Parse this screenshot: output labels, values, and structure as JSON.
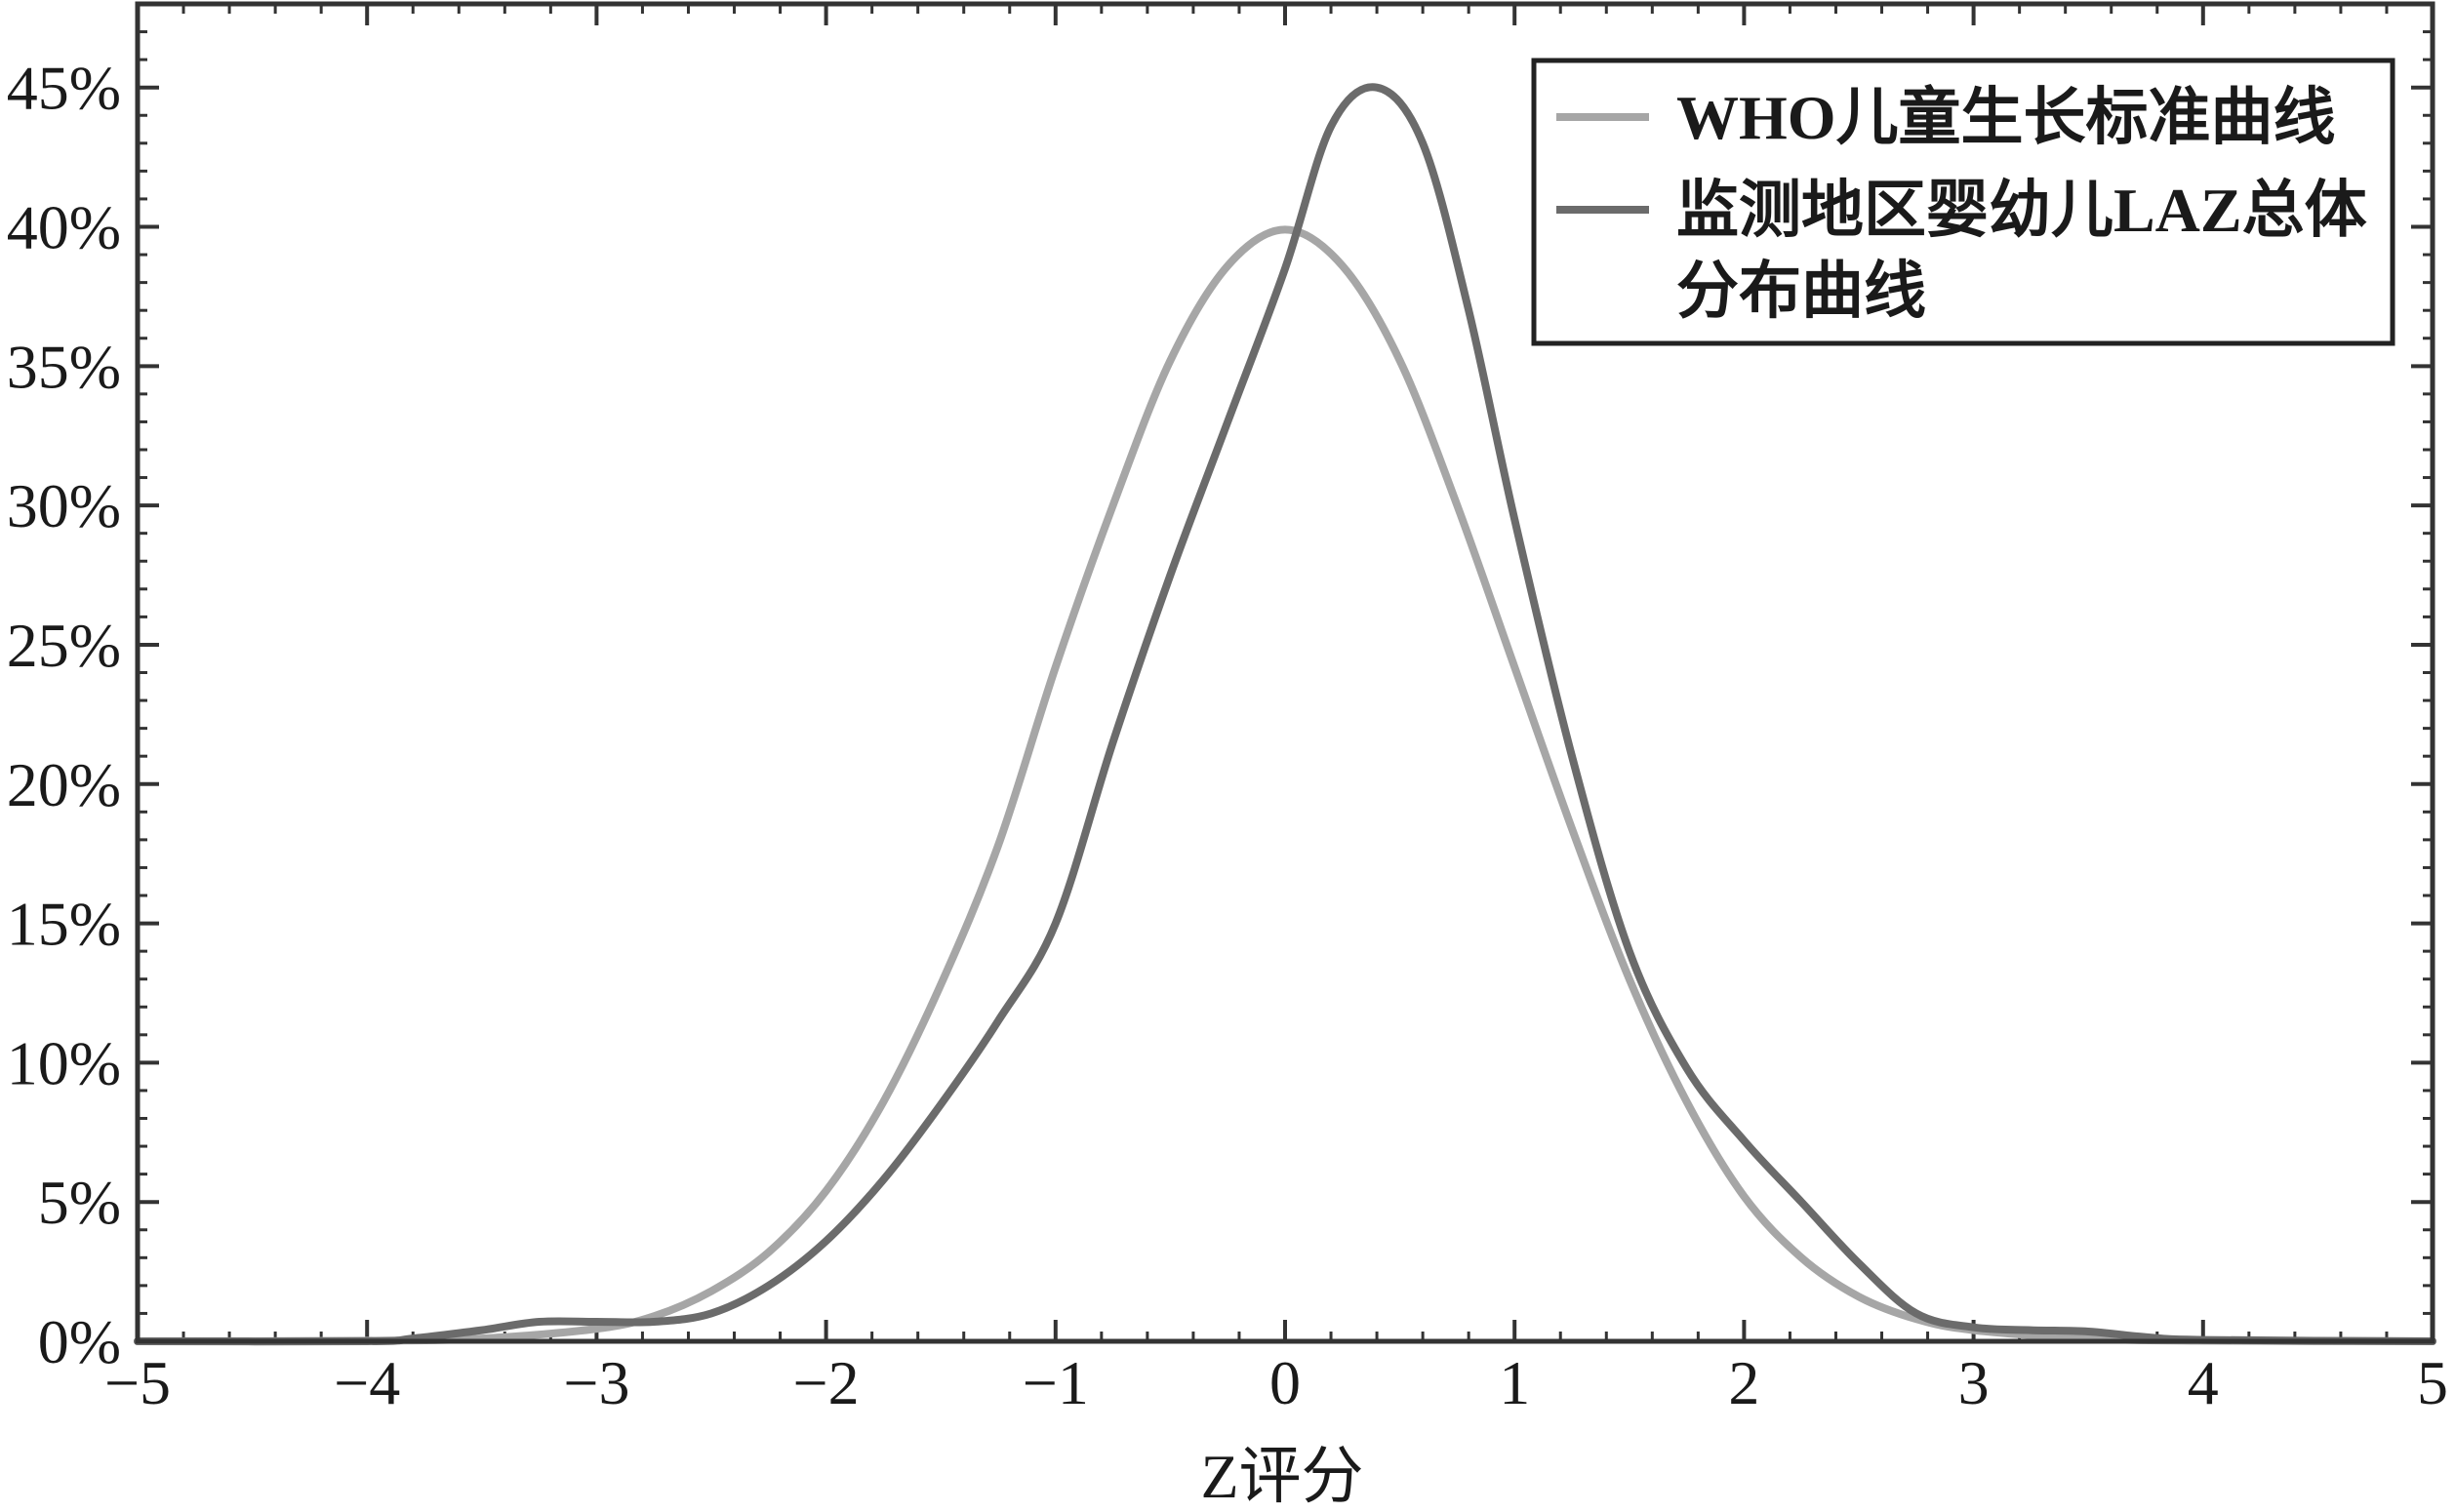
{
  "chart_data": {
    "type": "line",
    "title": "",
    "xlabel": "Z评分",
    "ylabel": "",
    "xlim": [
      -5,
      5
    ],
    "ylim": [
      0,
      48
    ],
    "x_ticks": [
      -5,
      -4,
      -3,
      -2,
      -1,
      0,
      1,
      2,
      3,
      4,
      5
    ],
    "x_tick_labels": [
      "−5",
      "−4",
      "−3",
      "−2",
      "−1",
      "0",
      "1",
      "2",
      "3",
      "4",
      "5"
    ],
    "y_ticks": [
      0,
      5,
      10,
      15,
      20,
      25,
      30,
      35,
      40,
      45
    ],
    "y_tick_labels": [
      "0%",
      "5%",
      "10%",
      "15%",
      "20%",
      "25%",
      "30%",
      "35%",
      "40%",
      "45%"
    ],
    "x_minor_step": 0.2,
    "y_minor_step": 1,
    "grid": false,
    "legend_position": "top-right",
    "series": [
      {
        "name": "WHO儿童生长标准曲线",
        "color": "#a6a6a6",
        "points": [
          [
            -5,
            0
          ],
          [
            -4,
            0.02
          ],
          [
            -3.5,
            0.1
          ],
          [
            -3,
            0.45
          ],
          [
            -2.75,
            0.9
          ],
          [
            -2.5,
            1.8
          ],
          [
            -2.25,
            3.2
          ],
          [
            -2,
            5.4
          ],
          [
            -1.75,
            8.6
          ],
          [
            -1.5,
            12.8
          ],
          [
            -1.25,
            17.8
          ],
          [
            -1,
            24.2
          ],
          [
            -0.75,
            30.0
          ],
          [
            -0.5,
            35.2
          ],
          [
            -0.25,
            38.6
          ],
          [
            0,
            39.9
          ],
          [
            0.25,
            38.6
          ],
          [
            0.5,
            35.2
          ],
          [
            0.75,
            30.0
          ],
          [
            1,
            24.2
          ],
          [
            1.25,
            18.4
          ],
          [
            1.5,
            13.0
          ],
          [
            1.75,
            8.6
          ],
          [
            2,
            5.2
          ],
          [
            2.25,
            3.0
          ],
          [
            2.5,
            1.6
          ],
          [
            2.75,
            0.8
          ],
          [
            3,
            0.4
          ],
          [
            3.5,
            0.1
          ],
          [
            4,
            0.02
          ],
          [
            5,
            0
          ]
        ]
      },
      {
        "name": "监测地区婴幼儿LAZ总体分布曲线",
        "color": "#6b6b6b",
        "points": [
          [
            -5,
            0
          ],
          [
            -4,
            0
          ],
          [
            -3.8,
            0.1
          ],
          [
            -3.5,
            0.4
          ],
          [
            -3.25,
            0.7
          ],
          [
            -3,
            0.7
          ],
          [
            -2.75,
            0.7
          ],
          [
            -2.5,
            1.0
          ],
          [
            -2.25,
            2.0
          ],
          [
            -2,
            3.6
          ],
          [
            -1.75,
            5.8
          ],
          [
            -1.5,
            8.5
          ],
          [
            -1.25,
            11.5
          ],
          [
            -1,
            15.0
          ],
          [
            -0.75,
            21.5
          ],
          [
            -0.5,
            27.5
          ],
          [
            -0.25,
            33.0
          ],
          [
            0,
            38.5
          ],
          [
            0.2,
            43.6
          ],
          [
            0.4,
            45.0
          ],
          [
            0.6,
            43.0
          ],
          [
            0.8,
            37.0
          ],
          [
            1,
            29.5
          ],
          [
            1.25,
            21.0
          ],
          [
            1.5,
            14.0
          ],
          [
            1.75,
            9.8
          ],
          [
            2,
            7.2
          ],
          [
            2.25,
            5.0
          ],
          [
            2.5,
            2.8
          ],
          [
            2.75,
            1.0
          ],
          [
            3,
            0.5
          ],
          [
            3.25,
            0.4
          ],
          [
            3.5,
            0.35
          ],
          [
            3.75,
            0.15
          ],
          [
            4,
            0.05
          ],
          [
            5,
            0
          ]
        ]
      }
    ]
  },
  "legend": {
    "entries": [
      {
        "label_lines": [
          "WHO儿童生长标准曲线"
        ]
      },
      {
        "label_lines": [
          "监测地区婴幼儿LAZ总体",
          "分布曲线"
        ]
      }
    ]
  }
}
